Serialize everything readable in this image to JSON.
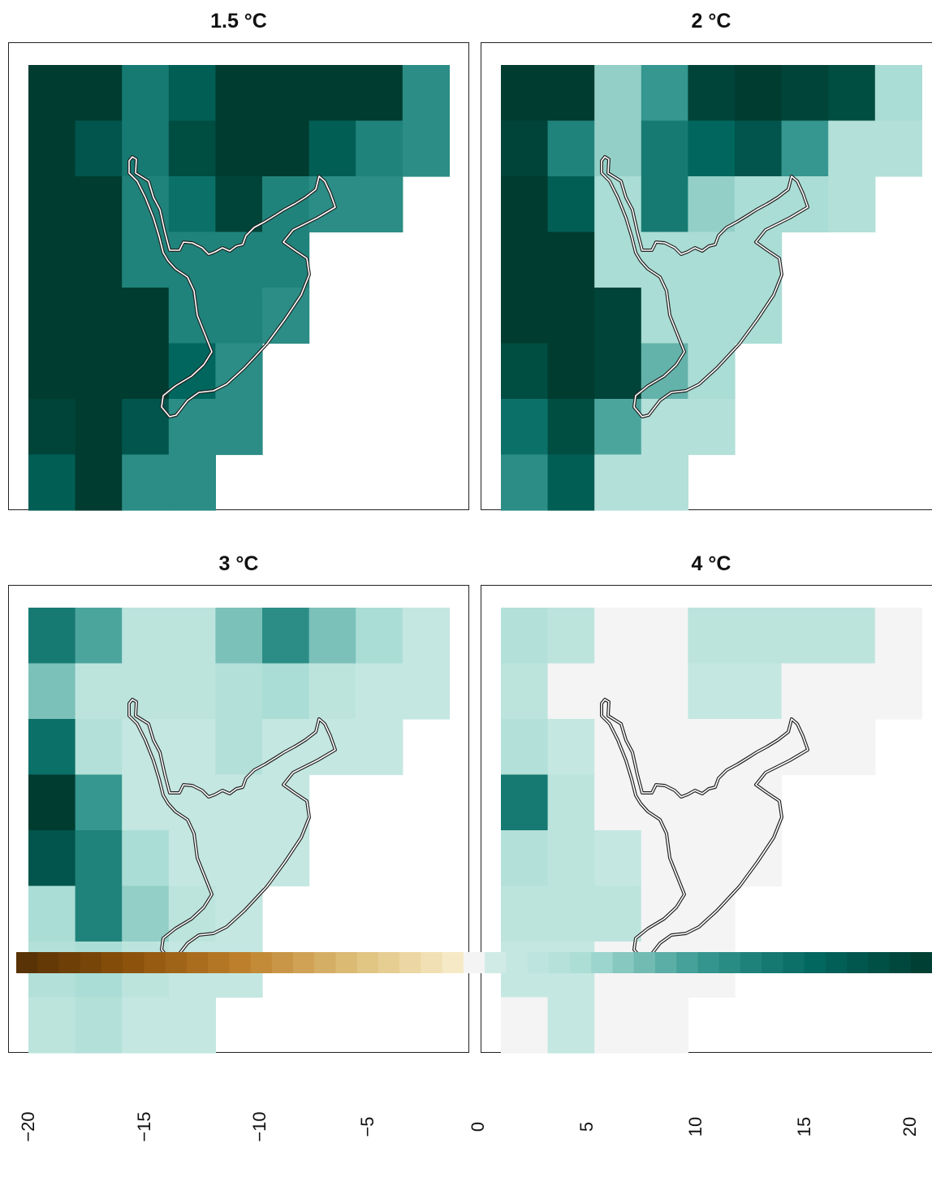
{
  "titles": [
    "1.5 °C",
    "2 °C",
    "3 °C",
    "4 °C"
  ],
  "colorbar": {
    "min": -20,
    "max": 20,
    "ticks": [
      "−20",
      "−15",
      "−10",
      "−5",
      "0",
      "5",
      "10",
      "15",
      "20"
    ]
  },
  "map_data": {
    "rows": 8,
    "cols": 9,
    "panels": [
      {
        "name": "1.5 °C",
        "values": [
          [
            20,
            20,
            13,
            16,
            20,
            20,
            20,
            20,
            11
          ],
          [
            20,
            17,
            13,
            18,
            20,
            20,
            16,
            12,
            11
          ],
          [
            20,
            20,
            12,
            14,
            19,
            12,
            11,
            11,
            null
          ],
          [
            20,
            20,
            12,
            12,
            12,
            12,
            null,
            null,
            null
          ],
          [
            20,
            20,
            20,
            12,
            12,
            11,
            null,
            null,
            null
          ],
          [
            20,
            20,
            20,
            15,
            11,
            null,
            null,
            null,
            null
          ],
          [
            19,
            20,
            17,
            11,
            11,
            null,
            null,
            null,
            null
          ],
          [
            16,
            20,
            11,
            11,
            null,
            null,
            null,
            null,
            null
          ]
        ]
      },
      {
        "name": "2 °C",
        "values": [
          [
            20,
            20,
            6,
            10,
            19,
            20,
            19,
            18,
            5
          ],
          [
            19,
            12,
            6,
            13,
            15,
            17,
            10,
            4,
            4
          ],
          [
            20,
            16,
            5,
            13,
            6,
            5,
            5,
            4,
            null
          ],
          [
            20,
            20,
            5,
            5,
            5,
            5,
            null,
            null,
            null
          ],
          [
            20,
            20,
            19,
            5,
            5,
            5,
            null,
            null,
            null
          ],
          [
            18,
            20,
            19,
            8,
            5,
            null,
            null,
            null,
            null
          ],
          [
            14,
            18,
            9,
            4,
            4,
            null,
            null,
            null,
            null
          ],
          [
            11,
            16,
            4,
            4,
            null,
            null,
            null,
            null,
            null
          ]
        ]
      },
      {
        "name": "3 °C",
        "values": [
          [
            13,
            9,
            3,
            3,
            7,
            11,
            7,
            5,
            2
          ],
          [
            7,
            3,
            3,
            3,
            4,
            5,
            3,
            2,
            2
          ],
          [
            14,
            4,
            2,
            2,
            4,
            2,
            2,
            2,
            null
          ],
          [
            20,
            10,
            2,
            2,
            2,
            2,
            null,
            null,
            null
          ],
          [
            17,
            12,
            5,
            2,
            2,
            2,
            null,
            null,
            null
          ],
          [
            5,
            12,
            6,
            3,
            2,
            null,
            null,
            null,
            null
          ],
          [
            4,
            5,
            3,
            2,
            2,
            null,
            null,
            null,
            null
          ],
          [
            3,
            4,
            2,
            2,
            null,
            null,
            null,
            null,
            null
          ]
        ]
      },
      {
        "name": "4 °C",
        "values": [
          [
            4,
            3,
            0,
            0,
            3,
            3,
            3,
            3,
            0
          ],
          [
            3,
            0,
            0,
            0,
            2,
            2,
            0,
            0,
            0
          ],
          [
            4,
            2,
            0,
            0,
            0,
            0,
            0,
            0,
            null
          ],
          [
            13,
            3,
            0,
            0,
            0,
            0,
            null,
            null,
            null
          ],
          [
            4,
            3,
            2,
            0,
            0,
            0,
            null,
            null,
            null
          ],
          [
            3,
            3,
            3,
            0,
            0,
            null,
            null,
            null,
            null
          ],
          [
            2,
            2,
            0,
            0,
            0,
            null,
            null,
            null,
            null
          ],
          [
            0,
            2,
            0,
            0,
            null,
            null,
            null,
            null,
            null
          ]
        ]
      }
    ]
  }
}
